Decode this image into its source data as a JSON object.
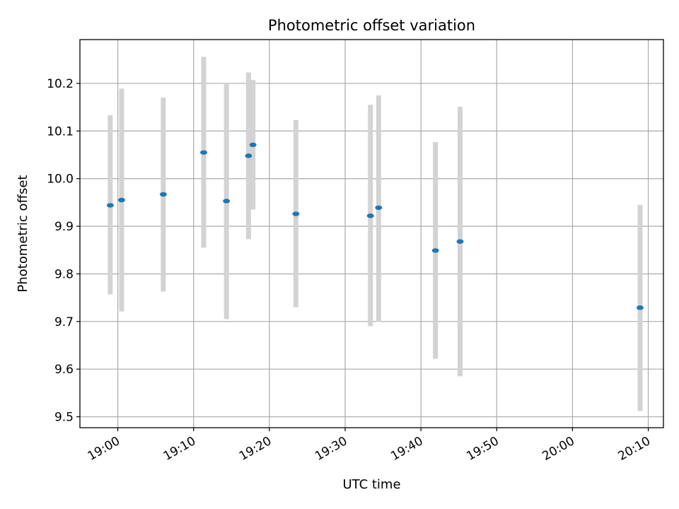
{
  "chart_data": {
    "type": "scatter",
    "title": "Photometric offset variation",
    "xlabel": "UTC time",
    "ylabel": "Photometric offset",
    "grid": true,
    "xlim": [
      "18:55",
      "20:12"
    ],
    "ylim": [
      9.477,
      10.292
    ],
    "x_ticks": [
      "19:00",
      "19:10",
      "19:20",
      "19:30",
      "19:40",
      "19:50",
      "20:00",
      "20:10"
    ],
    "y_ticks": [
      "9.5",
      "9.6",
      "9.7",
      "9.8",
      "9.9",
      "10.0",
      "10.1",
      "10.2"
    ],
    "y_tick_values": [
      9.5,
      9.6,
      9.7,
      9.8,
      9.9,
      10.0,
      10.1,
      10.2
    ],
    "series": [
      {
        "marker_color": "#1f77b4",
        "errorbar_color": "#d3d3d3",
        "points": [
          {
            "x": "18:59",
            "y": 9.944,
            "ylow": 9.757,
            "yhigh": 10.133
          },
          {
            "x": "19:00:30",
            "y": 9.955,
            "ylow": 9.721,
            "yhigh": 10.189
          },
          {
            "x": "19:06",
            "y": 9.967,
            "ylow": 9.763,
            "yhigh": 10.17
          },
          {
            "x": "19:11:20",
            "y": 10.055,
            "ylow": 9.855,
            "yhigh": 10.256
          },
          {
            "x": "19:14:20",
            "y": 9.953,
            "ylow": 9.705,
            "yhigh": 10.2
          },
          {
            "x": "19:17:15",
            "y": 10.048,
            "ylow": 9.873,
            "yhigh": 10.223
          },
          {
            "x": "19:17:50",
            "y": 10.071,
            "ylow": 9.935,
            "yhigh": 10.207
          },
          {
            "x": "19:23:30",
            "y": 9.926,
            "ylow": 9.73,
            "yhigh": 10.123
          },
          {
            "x": "19:33:20",
            "y": 9.922,
            "ylow": 9.69,
            "yhigh": 10.155
          },
          {
            "x": "19:34:25",
            "y": 9.939,
            "ylow": 9.699,
            "yhigh": 10.175
          },
          {
            "x": "19:41:55",
            "y": 9.849,
            "ylow": 9.622,
            "yhigh": 10.077
          },
          {
            "x": "19:45:10",
            "y": 9.868,
            "ylow": 9.585,
            "yhigh": 10.151
          },
          {
            "x": "20:08:55",
            "y": 9.729,
            "ylow": 9.512,
            "yhigh": 9.945
          }
        ]
      }
    ]
  }
}
